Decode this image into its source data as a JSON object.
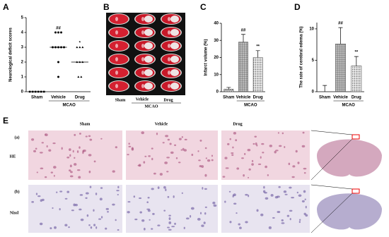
{
  "chart_data": [
    {
      "type": "strip",
      "panel": "A",
      "y_label": "Neurological deficit scores",
      "categories": [
        "Sham",
        "Vehicle",
        "Drug"
      ],
      "group_label": "MCAO",
      "points": [
        [
          0,
          0,
          0,
          0,
          0,
          0
        ],
        [
          4,
          4,
          4,
          3,
          3,
          3,
          3,
          3,
          2,
          1
        ],
        [
          3,
          3,
          3,
          2,
          2,
          2,
          1,
          1
        ]
      ],
      "means": [
        0,
        3,
        2
      ],
      "annotations": [
        null,
        "##",
        "*"
      ],
      "ylim": [
        0,
        5
      ],
      "yticks": [
        0,
        1,
        2,
        3,
        4,
        5
      ],
      "color": "#000000"
    },
    {
      "type": "bar",
      "panel": "C",
      "y_label": "Infarct volume (%)",
      "categories": [
        "Sham",
        "Vehicle",
        "Drug"
      ],
      "group_label": "MCAO",
      "values": [
        1.5,
        29,
        20
      ],
      "errors": [
        1,
        4.5,
        4
      ],
      "annotations": [
        null,
        "##",
        "**"
      ],
      "ylim": [
        0,
        40
      ],
      "yticks": [
        0,
        10,
        20,
        30,
        40
      ],
      "color": "#555555"
    },
    {
      "type": "bar",
      "panel": "D",
      "y_label": "The rate of cerebral edema (%)",
      "categories": [
        "Sham",
        "Vehicle",
        "Drug"
      ],
      "group_label": "MCAO",
      "values": [
        0,
        7.6,
        4.1
      ],
      "errors": [
        1,
        2.6,
        1.5
      ],
      "annotations": [
        null,
        "##",
        "**"
      ],
      "ylim": [
        0,
        11
      ],
      "yticks": [
        0,
        5,
        10
      ],
      "color": "#555555"
    }
  ],
  "figure_B": {
    "panel": "B",
    "labels": [
      "Sham",
      "Vehicle",
      "Drug"
    ],
    "group_label": "MCAO"
  },
  "figure_E": {
    "panel": "E",
    "columns": [
      "Sham",
      "Vehicle",
      "Drug"
    ],
    "rows": [
      {
        "tag": "(a)",
        "stain": "HE"
      },
      {
        "tag": "(b)",
        "stain": "Nissl"
      }
    ]
  }
}
